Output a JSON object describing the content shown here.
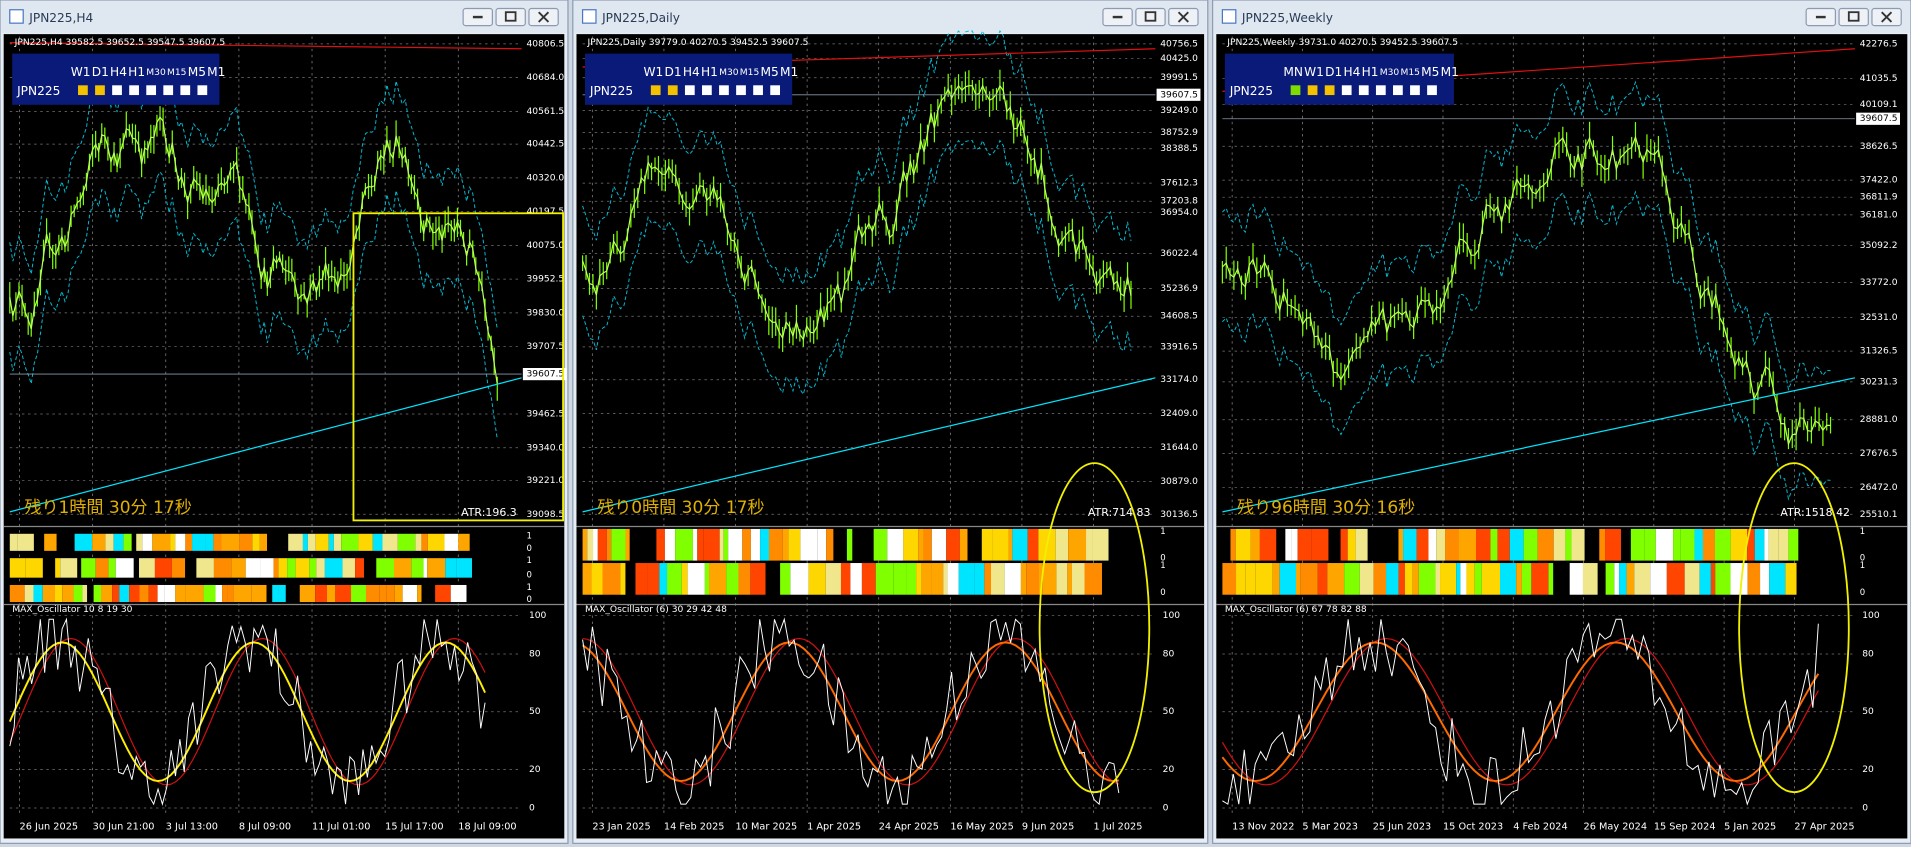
{
  "windows": [
    {
      "title": "JPN225,H4",
      "header": "JPN225,H4 39582.5 39652.5 39547.5 39607.5",
      "symbol": "JPN225",
      "timeframes": [
        "W1",
        "D1",
        "H4",
        "H1",
        "M30",
        "M15",
        "M5",
        "M1"
      ],
      "timeframe_colors": [
        "#f2c200",
        "#f2c200",
        "#ffffff",
        "#ffffff",
        "#ffffff",
        "#ffffff",
        "#ffffff",
        "#ffffff"
      ],
      "prices": [
        "40806.5",
        "40684.0",
        "40561.5",
        "40442.5",
        "40320.0",
        "40197.5",
        "40075.0",
        "39952.5",
        "39830.0",
        "39707.5",
        "39462.5",
        "39340.0",
        "39221.0",
        "39098.5"
      ],
      "current_price": "39607.5",
      "countdown": "残り1時間 30分 17秒",
      "atr": "ATR:196.3",
      "strip_ticks": [
        "1",
        "0",
        "1",
        "0",
        "1",
        "0"
      ],
      "oscillator": "MAX_Oscillator 10 8 19 30",
      "osc_ticks": [
        100,
        80,
        50,
        20,
        0
      ],
      "dates": [
        "26 Jun 2025",
        "30 Jun 21:00",
        "3 Jul 13:00",
        "8 Jul 09:00",
        "11 Jul 01:00",
        "15 Jul 17:00",
        "18 Jul 09:00"
      ]
    },
    {
      "title": "JPN225,Daily",
      "header": "JPN225,Daily 39779.0 40270.5 39452.5 39607.5",
      "symbol": "JPN225",
      "timeframes": [
        "W1",
        "D1",
        "H4",
        "H1",
        "M30",
        "M15",
        "M5",
        "M1"
      ],
      "timeframe_colors": [
        "#f2c200",
        "#f2c200",
        "#ffffff",
        "#ffffff",
        "#ffffff",
        "#ffffff",
        "#ffffff",
        "#ffffff"
      ],
      "prices": [
        "40756.5",
        "40425.0",
        "39991.5",
        "39249.0",
        "38752.9",
        "38388.5",
        "37612.3",
        "37203.8",
        "36954.0",
        "36022.4",
        "35236.9",
        "34608.5",
        "33916.5",
        "33174.0",
        "32409.0",
        "31644.0",
        "30879.0",
        "30136.5"
      ],
      "current_price": "39607.5",
      "countdown": "残り0時間 30分 17秒",
      "atr": "ATR:714.83",
      "strip_ticks": [
        "1",
        "0",
        "1",
        "0"
      ],
      "oscillator": "MAX_Oscillator (6) 30 29 42 48",
      "osc_ticks": [
        100,
        80,
        50,
        20,
        0
      ],
      "dates": [
        "23 Jan 2025",
        "14 Feb 2025",
        "10 Mar 2025",
        "1 Apr 2025",
        "24 Apr 2025",
        "16 May 2025",
        "9 Jun 2025",
        "1 Jul 2025"
      ]
    },
    {
      "title": "JPN225,Weekly",
      "header": "JPN225,Weekly 39731.0 40270.5 39452.5 39607.5",
      "symbol": "JPN225",
      "timeframes": [
        "MN",
        "W1",
        "D1",
        "H4",
        "H1",
        "M30",
        "M15",
        "M5",
        "M1"
      ],
      "timeframe_colors": [
        "#7fdc00",
        "#f2c200",
        "#f2c200",
        "#ffffff",
        "#ffffff",
        "#ffffff",
        "#ffffff",
        "#ffffff",
        "#ffffff"
      ],
      "prices": [
        "42276.5",
        "41035.5",
        "40109.1",
        "38626.5",
        "37422.0",
        "36811.9",
        "36181.0",
        "35092.2",
        "33772.0",
        "32531.0",
        "31326.5",
        "30231.3",
        "28881.0",
        "27676.5",
        "26472.0",
        "25510.1"
      ],
      "current_price": "39607.5",
      "countdown": "残り96時間 30分 16秒",
      "atr": "ATR:1518.42",
      "strip_ticks": [
        "1",
        "0",
        "1",
        "0"
      ],
      "oscillator": "MAX_Oscillator (6) 67 78 82 88",
      "osc_ticks": [
        100,
        80,
        50,
        20,
        0
      ],
      "dates": [
        "13 Nov 2022",
        "5 Mar 2023",
        "25 Jun 2023",
        "15 Oct 2023",
        "4 Feb 2024",
        "26 May 2024",
        "15 Sep 2024",
        "5 Jan 2025",
        "27 Apr 2025"
      ]
    }
  ]
}
